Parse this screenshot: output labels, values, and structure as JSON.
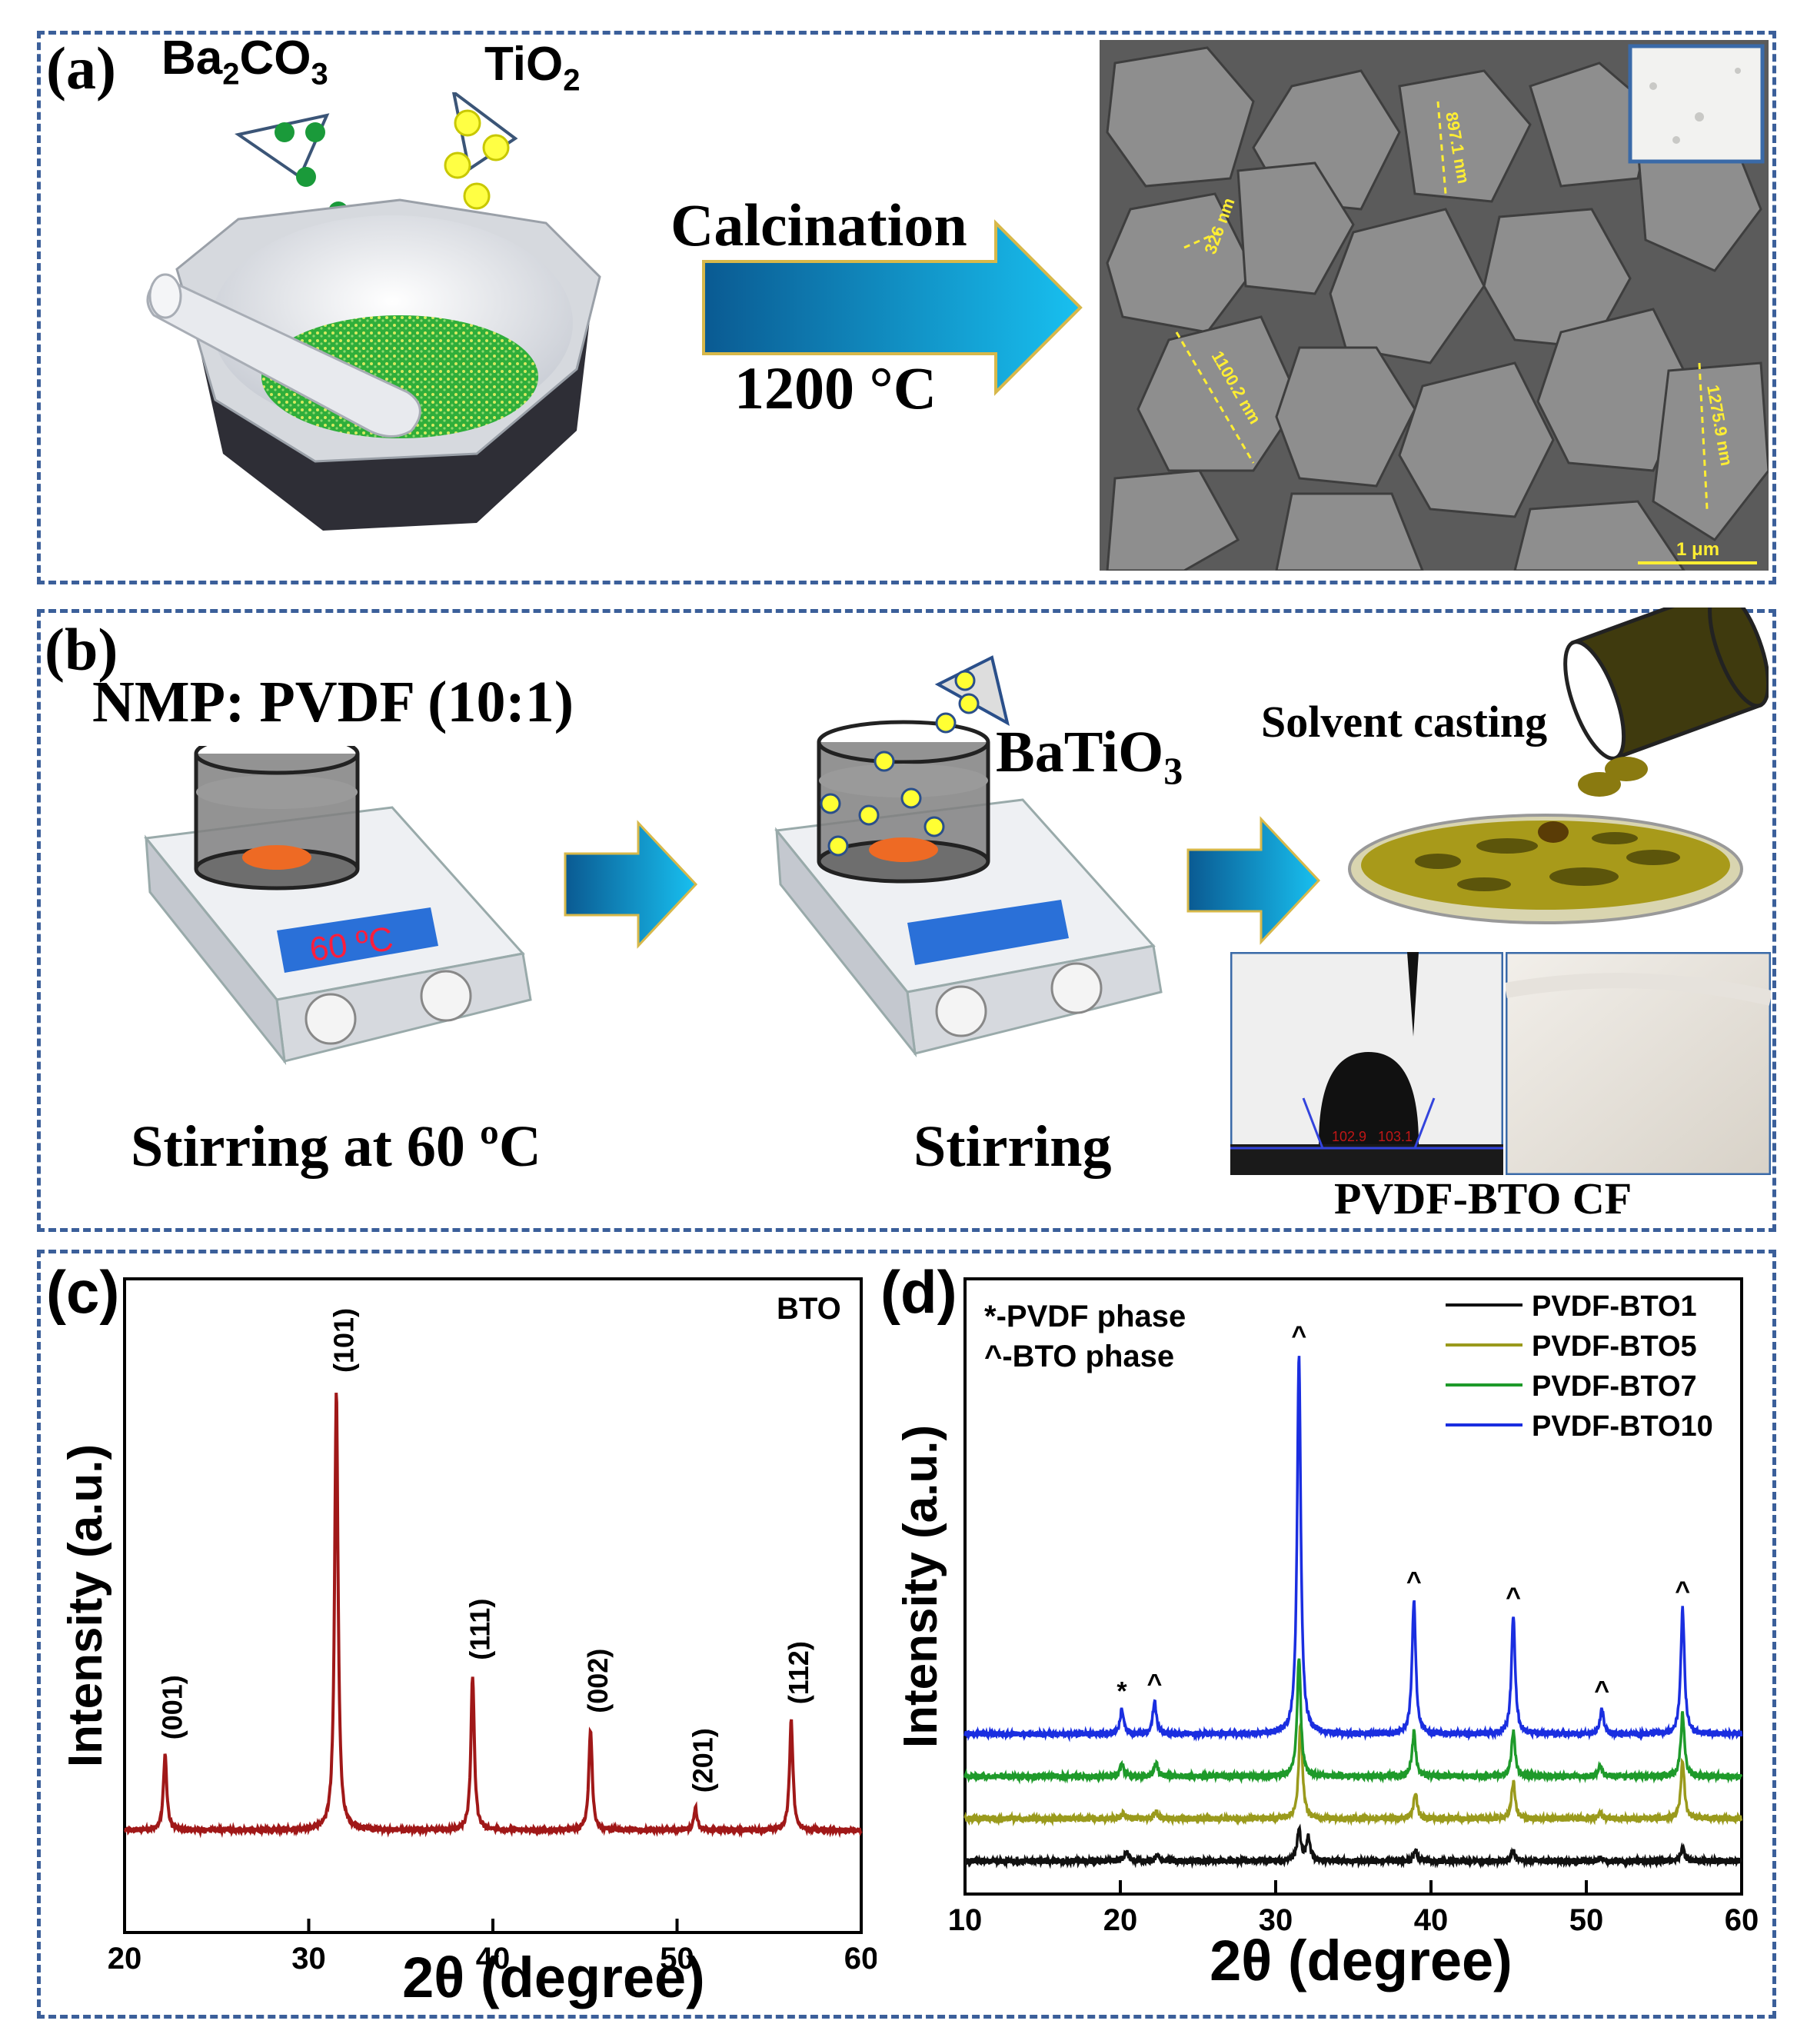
{
  "panel_a": {
    "label": "(a)",
    "precursor1": "Ba",
    "precursor1_sub1": "2",
    "precursor1_mid": "CO",
    "precursor1_sub2": "3",
    "precursor2": "TiO",
    "precursor2_sub": "2",
    "process": "Calcination",
    "temperature": "1200 °C",
    "sem_measurements": [
      "897.1 nm",
      "326 nm",
      "1100.2 nm",
      "1275.9 nm"
    ],
    "scale_bar": "1 μm"
  },
  "panel_b": {
    "label": "(b)",
    "solution": "NMP: PVDF (10:1)",
    "display_temp": "60 ºC",
    "step1": "Stirring at 60 ºC",
    "powder": "BaTiO",
    "powder_sub": "3",
    "step2": "Stirring",
    "casting": "Solvent casting",
    "contact_angle_left": "102.9",
    "contact_angle_right": "103.1",
    "product": "PVDF-BTO CF"
  },
  "chart_data": [
    {
      "type": "line",
      "panel_label": "(c)",
      "legend": "BTO",
      "xlabel": "2θ (degree)",
      "ylabel": "Intensity (a.u.)",
      "xlim": [
        20,
        60
      ],
      "xticks": [
        "20",
        "30",
        "40",
        "50",
        "60"
      ],
      "grid": false,
      "series_color": "#a01818",
      "peaks": [
        {
          "x": 22.2,
          "height": 0.17,
          "label": "(001)"
        },
        {
          "x": 31.5,
          "height": 1.0,
          "label": "(101)"
        },
        {
          "x": 38.9,
          "height": 0.35,
          "label": "(111)"
        },
        {
          "x": 45.3,
          "height": 0.23,
          "label": "(002)"
        },
        {
          "x": 51.0,
          "height": 0.05,
          "label": "(201)"
        },
        {
          "x": 56.2,
          "height": 0.25,
          "label": "(112)"
        }
      ]
    },
    {
      "type": "line",
      "panel_label": "(d)",
      "xlabel": "2θ (degree)",
      "ylabel": "Intensity (a.u.)",
      "xlim": [
        10,
        60
      ],
      "xticks": [
        "10",
        "20",
        "30",
        "40",
        "50",
        "60"
      ],
      "grid": false,
      "annotations": [
        "*-PVDF phase",
        "^-BTO phase"
      ],
      "legend_position": "top-right",
      "markers": [
        {
          "x": 20.1,
          "symbol": "*"
        },
        {
          "x": 22.2,
          "symbol": "^"
        },
        {
          "x": 31.5,
          "symbol": "^"
        },
        {
          "x": 38.9,
          "symbol": "^"
        },
        {
          "x": 45.3,
          "symbol": "^"
        },
        {
          "x": 51.0,
          "symbol": "^"
        },
        {
          "x": 56.2,
          "symbol": "^"
        }
      ],
      "series": [
        {
          "name": "PVDF-BTO1",
          "color": "#111111",
          "offset": 0.0,
          "peaks": [
            [
              20.4,
              0.13
            ],
            [
              22.4,
              0.08
            ],
            [
              31.5,
              0.42
            ],
            [
              32.1,
              0.32
            ],
            [
              39.0,
              0.14
            ],
            [
              45.3,
              0.13
            ],
            [
              50.9,
              0.04
            ],
            [
              56.2,
              0.18
            ]
          ]
        },
        {
          "name": "PVDF-BTO5",
          "color": "#9a9a1c",
          "offset": 0.55,
          "peaks": [
            [
              20.2,
              0.08
            ],
            [
              22.3,
              0.09
            ],
            [
              31.6,
              1.25
            ],
            [
              39.0,
              0.33
            ],
            [
              45.3,
              0.48
            ],
            [
              50.9,
              0.08
            ],
            [
              56.2,
              0.75
            ]
          ]
        },
        {
          "name": "PVDF-BTO7",
          "color": "#1e9a2a",
          "offset": 1.1,
          "peaks": [
            [
              20.1,
              0.16
            ],
            [
              22.3,
              0.17
            ],
            [
              31.5,
              1.55
            ],
            [
              38.9,
              0.58
            ],
            [
              45.3,
              0.58
            ],
            [
              50.9,
              0.14
            ],
            [
              56.2,
              0.82
            ]
          ]
        },
        {
          "name": "PVDF-BTO10",
          "color": "#1a2ee0",
          "offset": 1.65,
          "peaks": [
            [
              20.1,
              0.32
            ],
            [
              22.2,
              0.42
            ],
            [
              31.5,
              4.95
            ],
            [
              38.9,
              1.75
            ],
            [
              45.3,
              1.55
            ],
            [
              51.0,
              0.33
            ],
            [
              56.2,
              1.63
            ]
          ]
        }
      ]
    }
  ]
}
